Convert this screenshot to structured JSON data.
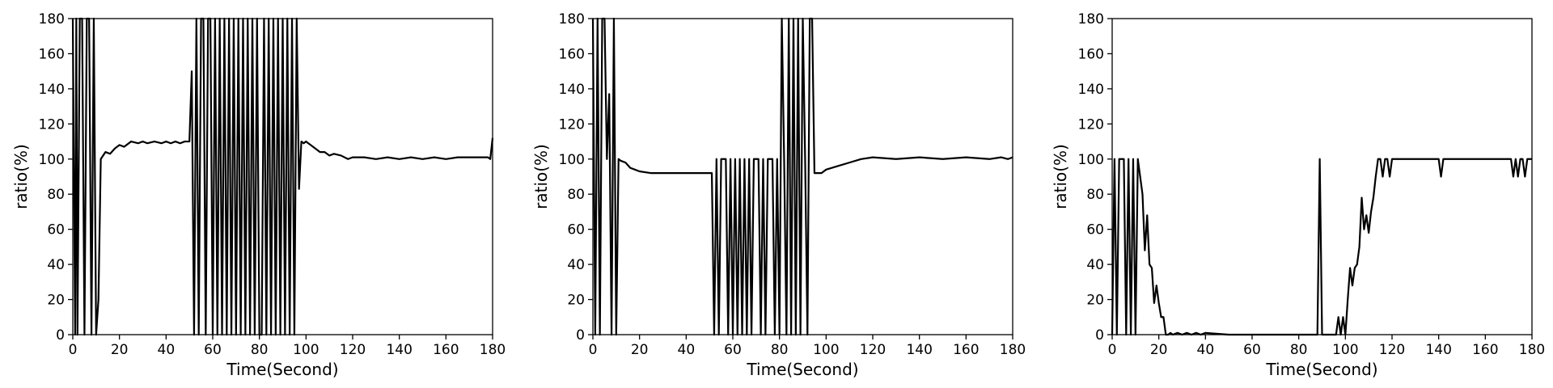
{
  "chart_data": [
    {
      "type": "line",
      "xlabel": "Time(Second)",
      "ylabel": "ratio(%)",
      "xlim": [
        0,
        180
      ],
      "ylim": [
        0,
        180
      ],
      "xticks": [
        0,
        20,
        40,
        60,
        80,
        100,
        120,
        140,
        160,
        180
      ],
      "yticks": [
        0,
        20,
        40,
        60,
        80,
        100,
        120,
        140,
        160,
        180
      ],
      "grid": false,
      "series": [
        {
          "color": "#000000",
          "x": [
            0,
            1,
            1.5,
            2,
            3,
            4,
            5,
            6,
            7,
            8,
            9,
            10,
            11,
            12,
            14,
            16,
            18,
            20,
            22,
            25,
            28,
            30,
            32,
            35,
            38,
            40,
            42,
            44,
            46,
            48,
            50,
            51,
            52,
            53,
            54,
            55,
            56,
            57,
            58,
            59,
            60,
            61,
            62,
            63,
            64,
            65,
            66,
            67,
            68,
            69,
            70,
            71,
            72,
            73,
            74,
            75,
            76,
            77,
            78,
            79,
            80,
            81,
            82,
            83,
            84,
            85,
            86,
            87,
            88,
            89,
            90,
            91,
            92,
            93,
            94,
            95,
            96,
            97,
            98,
            99,
            100,
            102,
            104,
            106,
            108,
            110,
            112,
            115,
            118,
            120,
            125,
            130,
            135,
            140,
            145,
            150,
            155,
            160,
            165,
            170,
            175,
            178,
            179,
            180
          ],
          "y": [
            180,
            0,
            180,
            0,
            180,
            180,
            0,
            180,
            180,
            0,
            180,
            0,
            20,
            100,
            104,
            103,
            106,
            108,
            107,
            110,
            109,
            110,
            109,
            110,
            109,
            110,
            109,
            110,
            109,
            110,
            110,
            150,
            0,
            180,
            0,
            180,
            180,
            0,
            180,
            180,
            0,
            180,
            0,
            180,
            0,
            180,
            0,
            180,
            0,
            180,
            0,
            180,
            0,
            180,
            0,
            180,
            0,
            180,
            0,
            180,
            0,
            0,
            180,
            0,
            180,
            0,
            180,
            0,
            180,
            0,
            180,
            0,
            180,
            0,
            180,
            0,
            180,
            83,
            110,
            109,
            110,
            108,
            106,
            104,
            104,
            102,
            103,
            102,
            100,
            101,
            101,
            100,
            101,
            100,
            101,
            100,
            101,
            100,
            101,
            101,
            101,
            101,
            100,
            112
          ]
        }
      ]
    },
    {
      "type": "line",
      "xlabel": "Time(Second)",
      "ylabel": "ratio(%)",
      "xlim": [
        0,
        180
      ],
      "ylim": [
        0,
        180
      ],
      "xticks": [
        0,
        20,
        40,
        60,
        80,
        100,
        120,
        140,
        160,
        180
      ],
      "yticks": [
        0,
        20,
        40,
        60,
        80,
        100,
        120,
        140,
        160,
        180
      ],
      "grid": false,
      "series": [
        {
          "color": "#000000",
          "x": [
            0,
            1,
            2,
            3,
            4,
            5,
            6,
            7,
            8,
            9,
            10,
            11,
            12,
            14,
            16,
            18,
            20,
            25,
            30,
            35,
            40,
            45,
            50,
            51,
            52,
            53,
            54,
            55,
            56,
            57,
            58,
            59,
            60,
            61,
            62,
            63,
            64,
            65,
            66,
            67,
            68,
            69,
            70,
            71,
            72,
            73,
            74,
            75,
            76,
            77,
            78,
            79,
            80,
            81,
            82,
            83,
            84,
            85,
            86,
            87,
            88,
            89,
            90,
            91,
            92,
            93,
            94,
            95,
            96,
            98,
            100,
            105,
            110,
            115,
            120,
            130,
            140,
            150,
            160,
            170,
            175,
            178,
            180
          ],
          "y": [
            180,
            0,
            180,
            0,
            180,
            180,
            100,
            137,
            0,
            180,
            0,
            100,
            99,
            98,
            95,
            94,
            93,
            92,
            92,
            92,
            92,
            92,
            92,
            92,
            0,
            100,
            0,
            100,
            100,
            100,
            0,
            100,
            0,
            100,
            0,
            100,
            0,
            100,
            0,
            100,
            0,
            100,
            100,
            100,
            0,
            100,
            0,
            100,
            100,
            100,
            0,
            100,
            0,
            180,
            100,
            0,
            180,
            0,
            180,
            0,
            180,
            0,
            180,
            100,
            0,
            180,
            180,
            92,
            92,
            92,
            94,
            96,
            98,
            100,
            101,
            100,
            101,
            100,
            101,
            100,
            101,
            100,
            101
          ]
        }
      ]
    },
    {
      "type": "line",
      "xlabel": "Time(Second)",
      "ylabel": "ratio(%)",
      "xlim": [
        0,
        180
      ],
      "ylim": [
        0,
        180
      ],
      "xticks": [
        0,
        20,
        40,
        60,
        80,
        100,
        120,
        140,
        160,
        180
      ],
      "yticks": [
        0,
        20,
        40,
        60,
        80,
        100,
        120,
        140,
        160,
        180
      ],
      "grid": false,
      "series": [
        {
          "color": "#000000",
          "x": [
            0,
            1,
            2,
            3,
            4,
            5,
            6,
            7,
            8,
            9,
            10,
            11,
            12,
            13,
            14,
            15,
            16,
            17,
            18,
            19,
            20,
            21,
            22,
            23,
            24,
            25,
            26,
            28,
            30,
            32,
            34,
            36,
            38,
            40,
            50,
            60,
            70,
            80,
            85,
            88,
            89,
            90,
            91,
            92,
            93,
            94,
            95,
            96,
            97,
            98,
            99,
            100,
            101,
            102,
            103,
            104,
            105,
            106,
            107,
            108,
            109,
            110,
            111,
            112,
            113,
            114,
            115,
            116,
            117,
            118,
            119,
            120,
            125,
            130,
            135,
            140,
            141,
            142,
            150,
            160,
            170,
            171,
            172,
            173,
            174,
            175,
            176,
            177,
            178,
            180
          ],
          "y": [
            0,
            100,
            0,
            100,
            100,
            100,
            0,
            100,
            0,
            100,
            0,
            100,
            90,
            80,
            48,
            68,
            40,
            38,
            18,
            28,
            18,
            10,
            10,
            0,
            0,
            1,
            0,
            1,
            0,
            1,
            0,
            1,
            0,
            1,
            0,
            0,
            0,
            0,
            0,
            0,
            100,
            0,
            0,
            0,
            0,
            0,
            0,
            0,
            10,
            0,
            10,
            0,
            20,
            38,
            28,
            38,
            40,
            50,
            78,
            60,
            68,
            58,
            70,
            78,
            90,
            100,
            100,
            90,
            100,
            100,
            90,
            100,
            100,
            100,
            100,
            100,
            90,
            100,
            100,
            100,
            100,
            100,
            90,
            100,
            90,
            100,
            100,
            90,
            100,
            100
          ]
        }
      ]
    }
  ]
}
